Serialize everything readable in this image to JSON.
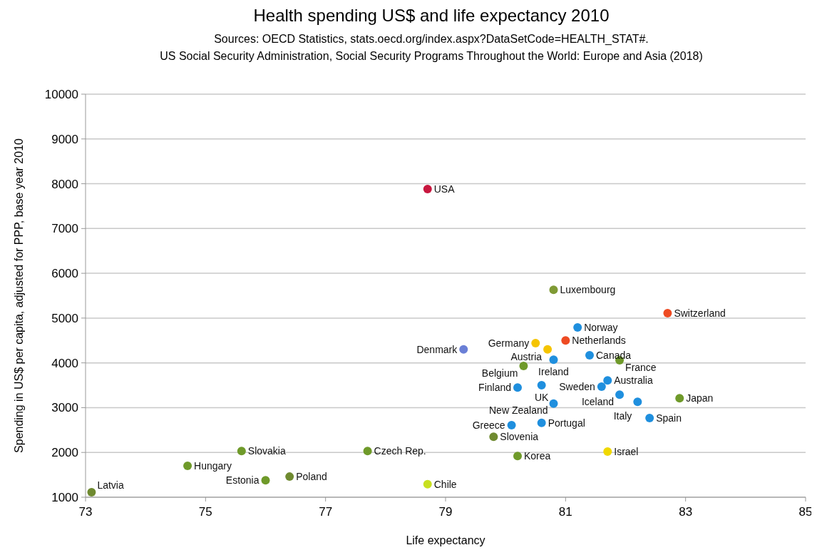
{
  "chart_data": {
    "type": "scatter",
    "title": "Health spending US$ and life expectancy 2010",
    "subtitle": "Sources:  OECD Statistics,  stats.oecd.org/index.aspx?DataSetCode=HEALTH_STAT#.\nUS Social Security Administration, Social Security Programs Throughout the World: Europe and Asia (2018)",
    "xlabel": "Life expectancy",
    "ylabel": "Spending in US$ per capita, adjusted for PPP, base year 2010",
    "x": [
      78.7,
      80.8,
      82.7,
      81.2,
      81.0,
      80.5,
      80.7,
      79.3,
      80.8,
      81.4,
      81.9,
      80.3,
      81.7,
      81.6,
      80.6,
      80.2,
      81.9,
      82.2,
      82.9,
      80.8,
      82.4,
      80.1,
      80.6,
      79.8,
      80.2,
      81.7,
      77.7,
      75.6,
      74.7,
      76.0,
      76.4,
      78.7,
      73.1
    ],
    "values": [
      7880,
      5630,
      5110,
      4790,
      4500,
      4440,
      4300,
      4300,
      4070,
      4170,
      4060,
      3930,
      3610,
      3470,
      3500,
      3450,
      3290,
      3130,
      3210,
      3090,
      2770,
      2610,
      2660,
      2350,
      1920,
      2020,
      2030,
      2030,
      1700,
      1380,
      1460,
      1290,
      1110
    ],
    "value_labels": [
      "USA",
      "Luxembourg",
      "Switzerland",
      "Norway",
      "Netherlands",
      "Germany",
      "Austria",
      "Denmark",
      "Ireland",
      "Canada",
      "France",
      "Belgium",
      "Australia",
      "Sweden",
      "UK",
      "Finland",
      "Iceland",
      "Italy",
      "Japan",
      "New Zealand",
      "Spain",
      "Greece",
      "Portugal",
      "Slovenia",
      "Korea",
      "Israel",
      "Czech Rep.",
      "Slovakia",
      "Hungary",
      "Estonia",
      "Poland",
      "Chile",
      "Latvia"
    ],
    "colors": [
      "#c8173f",
      "#7f9a35",
      "#ee4b23",
      "#1f8fde",
      "#ee4b23",
      "#f5c400",
      "#f5c400",
      "#6a7fd6",
      "#1f8fde",
      "#1f8fde",
      "#6f9a2a",
      "#6f9a2a",
      "#1f8fde",
      "#1f8fde",
      "#1f8fde",
      "#1f8fde",
      "#1f8fde",
      "#1f8fde",
      "#6f9a2a",
      "#1f8fde",
      "#1f8fde",
      "#1f8fde",
      "#1f8fde",
      "#6f8a30",
      "#6f9a2a",
      "#f0d800",
      "#6f9a2a",
      "#6f9a2a",
      "#6f9a2a",
      "#6f9a2a",
      "#6f8a30",
      "#c8e020",
      "#6f8a30"
    ],
    "xlim": [
      73,
      85
    ],
    "xticks": [
      73,
      75,
      77,
      79,
      81,
      83,
      85
    ],
    "ylim": [
      1000,
      10000
    ],
    "yticks": [
      1000,
      2000,
      3000,
      4000,
      5000,
      6000,
      7000,
      8000,
      9000,
      10000
    ],
    "grid": "y",
    "marker": "circle"
  }
}
